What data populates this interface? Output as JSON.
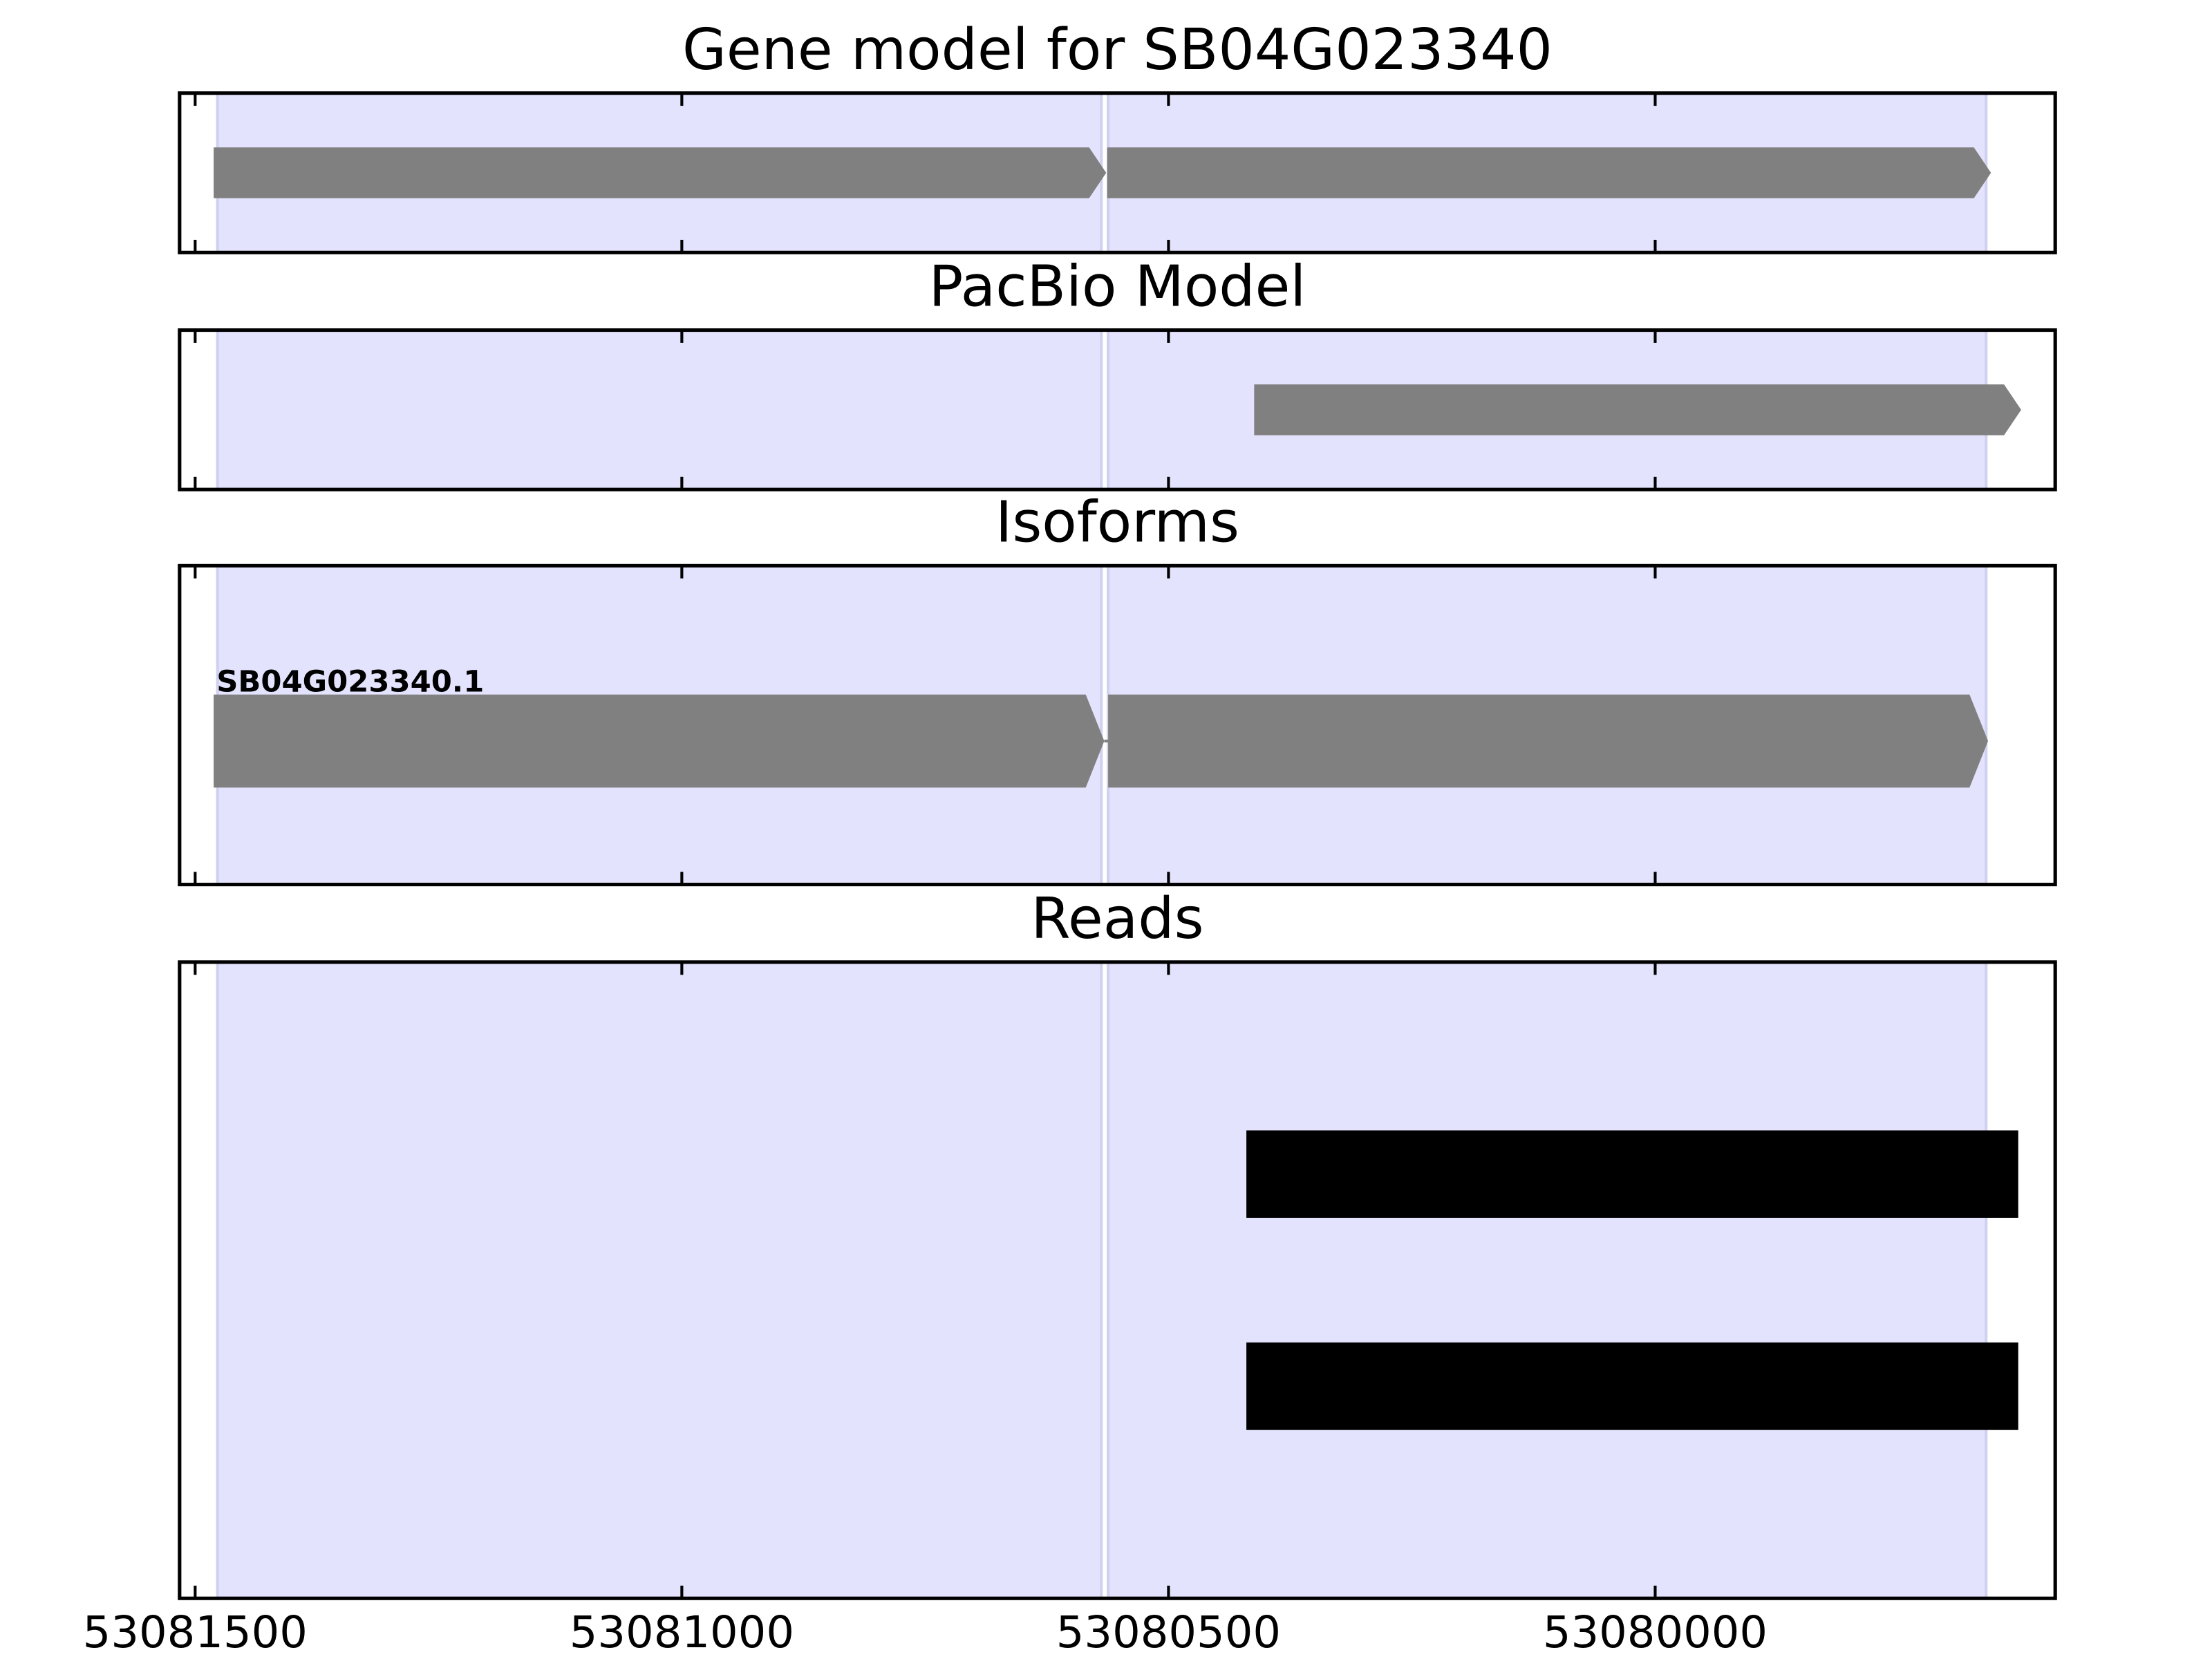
{
  "chart_data": [
    {
      "type": "gene",
      "title": "Gene model for SB04G023340",
      "xlim": [
        53081516,
        53079589
      ],
      "xticks": [
        53081500,
        53081000,
        53080500,
        53080000
      ],
      "exon_color": "#e3e3fd",
      "exons": [
        {
          "start": 53081477,
          "end": 53080569
        },
        {
          "start": 53080562,
          "end": 53079660
        }
      ],
      "color": "#808080",
      "features": [
        {
          "start": 53081481,
          "end": 53080564
        },
        {
          "start": 53080563,
          "end": 53079655
        }
      ]
    },
    {
      "type": "gene",
      "title": "PacBio Model",
      "xlim": [
        53081516,
        53079589
      ],
      "xticks": [
        53081500,
        53081000,
        53080500,
        53080000
      ],
      "exon_color": "#e3e3fd",
      "exons": [
        {
          "start": 53081477,
          "end": 53080569
        },
        {
          "start": 53080562,
          "end": 53079660
        }
      ],
      "color": "#808080",
      "features": [
        {
          "start": 53080412,
          "end": 53079624
        }
      ]
    },
    {
      "type": "isoform",
      "title": "Isoforms",
      "xlim": [
        53081516,
        53079589
      ],
      "xticks": [
        53081500,
        53081000,
        53080500,
        53080000
      ],
      "exon_color": "#e3e3fd",
      "exons": [
        {
          "start": 53081477,
          "end": 53080569
        },
        {
          "start": 53080562,
          "end": 53079660
        }
      ],
      "color": "#808080",
      "label": "SB04G023340.1",
      "features": [
        {
          "start": 53081481,
          "end": 53080566
        },
        {
          "start": 53080562,
          "end": 53079658
        }
      ]
    },
    {
      "type": "reads",
      "title": "Reads",
      "xlim": [
        53081516,
        53079589
      ],
      "xticks": [
        53081500,
        53081000,
        53080500,
        53080000
      ],
      "exon_color": "#e3e3fd",
      "exons": [
        {
          "start": 53081477,
          "end": 53080569
        },
        {
          "start": 53080562,
          "end": 53079660
        }
      ],
      "color": "#000000",
      "features": [
        {
          "start": 53080420,
          "end": 53079627
        },
        {
          "start": 53080420,
          "end": 53079627
        }
      ]
    }
  ]
}
